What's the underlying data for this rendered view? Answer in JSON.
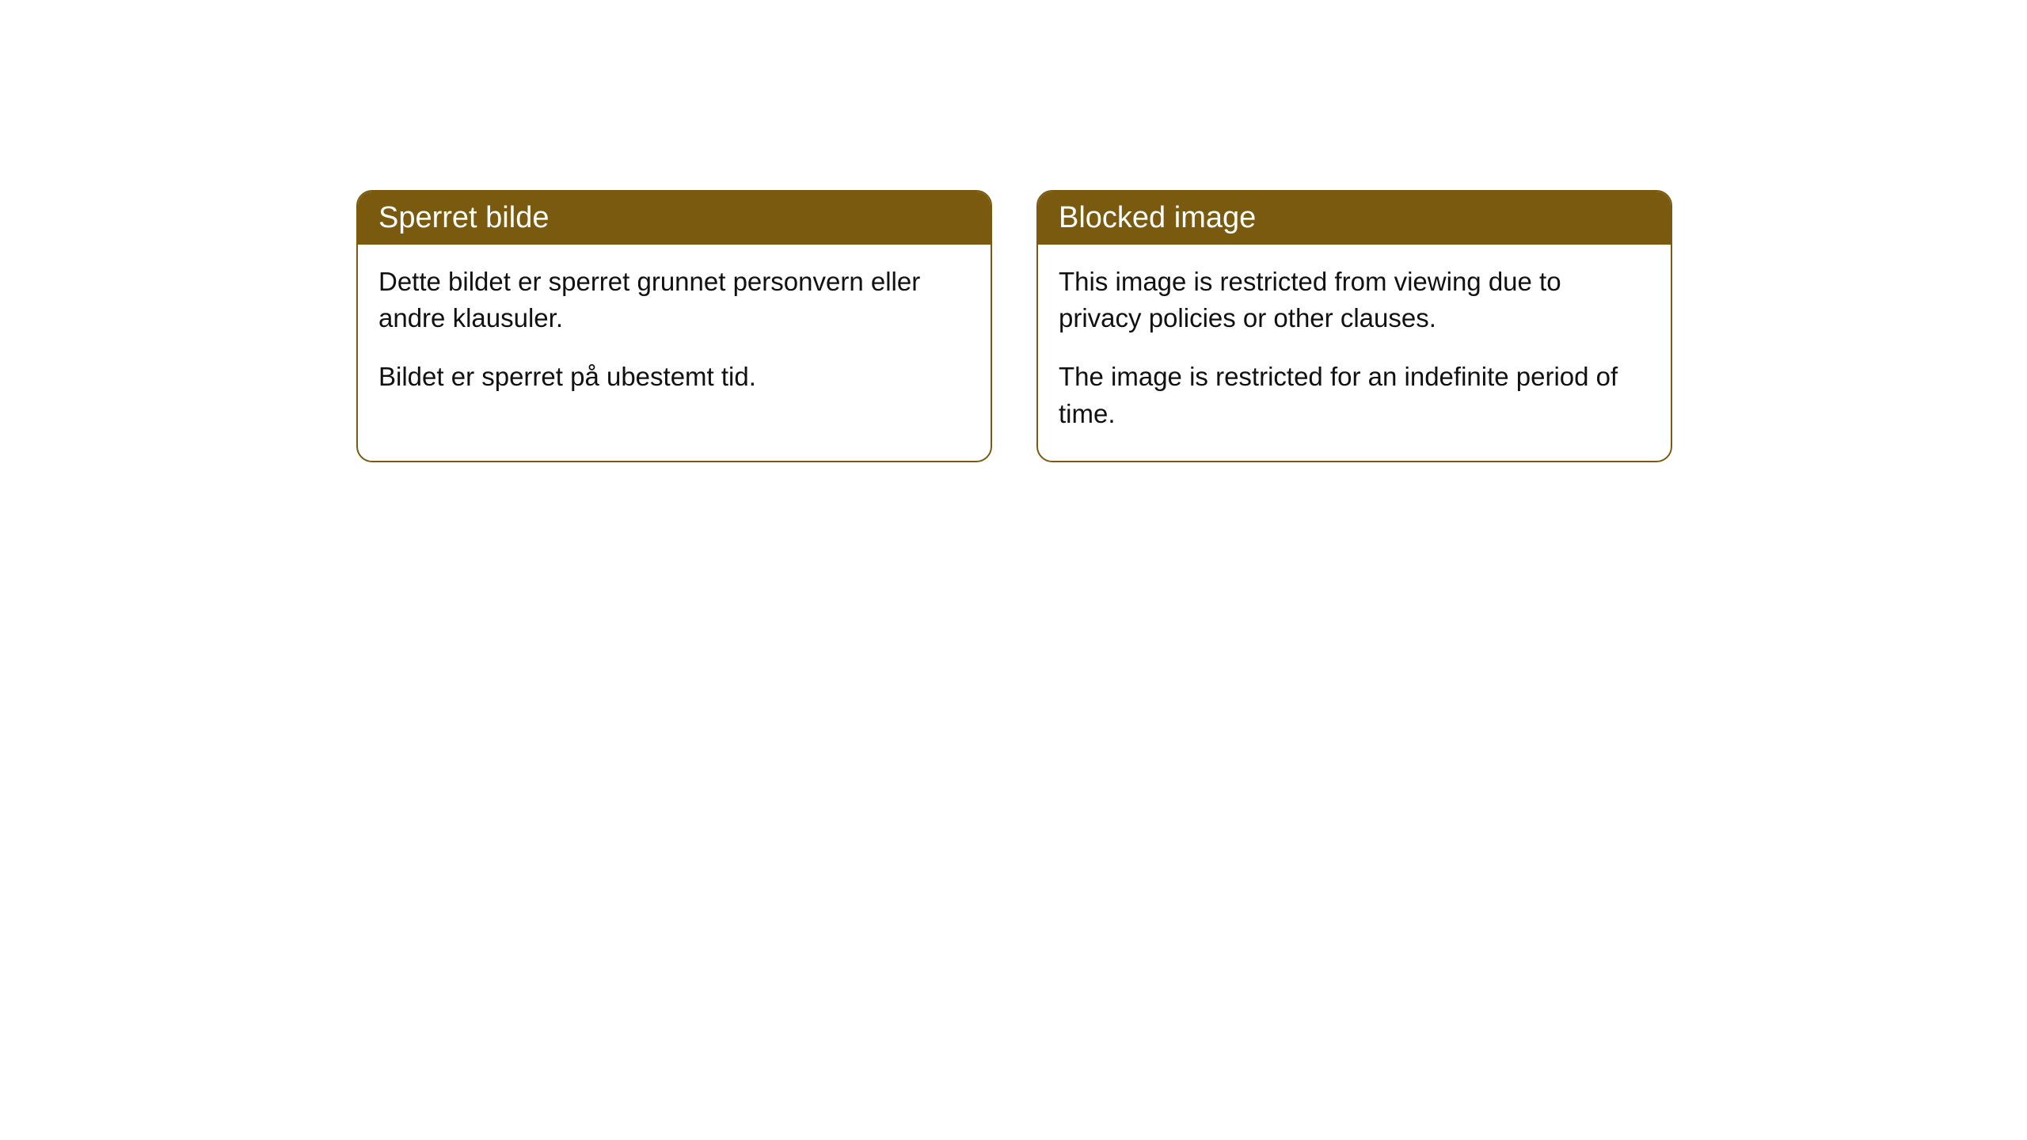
{
  "cards": [
    {
      "title": "Sperret bilde",
      "paragraph1": "Dette bildet er sperret grunnet personvern eller andre klausuler.",
      "paragraph2": "Bildet er sperret på ubestemt tid."
    },
    {
      "title": "Blocked image",
      "paragraph1": "This image is restricted from viewing due to privacy policies or other clauses.",
      "paragraph2": "The image is restricted for an indefinite period of time."
    }
  ],
  "style": {
    "header_background": "#7a5a0f",
    "header_text_color": "#ffffff",
    "border_color": "#7a5a0f",
    "body_background": "#ffffff",
    "body_text_color": "#111111",
    "title_fontsize": 38,
    "body_fontsize": 33,
    "border_radius": 20
  }
}
